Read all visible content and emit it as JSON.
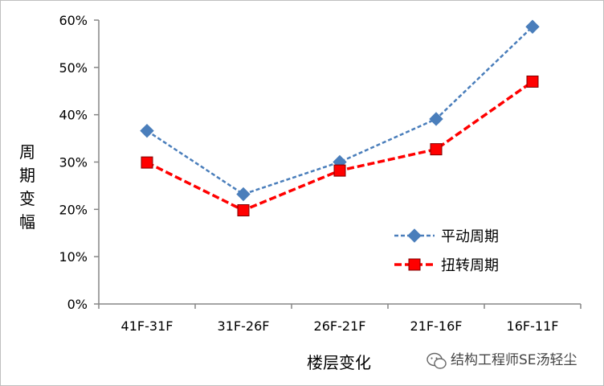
{
  "chart_data": {
    "type": "line",
    "categories": [
      "41F-31F",
      "31F-26F",
      "26F-21F",
      "21F-16F",
      "16F-11F"
    ],
    "series": [
      {
        "name": "平动周期",
        "values": [
          36.6,
          23.2,
          30.0,
          39.1,
          58.6
        ],
        "color": "#4a7ebb",
        "line_style": "dashed",
        "marker": "diamond"
      },
      {
        "name": "扭转周期",
        "values": [
          29.9,
          19.8,
          28.2,
          32.7,
          47.0
        ],
        "color": "#ff0000",
        "line_style": "dashed",
        "marker": "square"
      }
    ],
    "xlabel": "楼层变化",
    "ylabel": "周期变幅",
    "ylim": [
      0,
      60
    ],
    "yticks": [
      "0%",
      "10%",
      "20%",
      "30%",
      "40%",
      "50%",
      "60%"
    ],
    "grid": false,
    "legend_position": "right-center"
  },
  "watermark": {
    "text": "结构工程师SE汤轻尘",
    "icon": "wechat-icon"
  }
}
